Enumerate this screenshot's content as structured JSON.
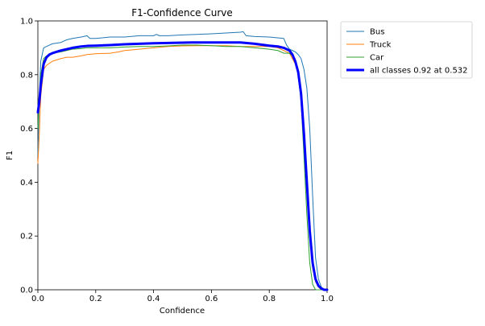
{
  "chart_data": {
    "type": "line",
    "title": "F1-Confidence Curve",
    "xlabel": "Confidence",
    "ylabel": "F1",
    "xlim": [
      0.0,
      1.0
    ],
    "ylim": [
      0.0,
      1.0
    ],
    "xticks": [
      "0.0",
      "0.2",
      "0.4",
      "0.6",
      "0.8",
      "1.0"
    ],
    "yticks": [
      "0.0",
      "0.2",
      "0.4",
      "0.6",
      "0.8",
      "1.0"
    ],
    "grid": false,
    "legend_position": "outside-top-right",
    "series": [
      {
        "name": "Bus",
        "color": "#1f77b4",
        "x": [
          0.0,
          0.005,
          0.01,
          0.02,
          0.03,
          0.04,
          0.05,
          0.08,
          0.1,
          0.12,
          0.15,
          0.17,
          0.18,
          0.2,
          0.25,
          0.3,
          0.35,
          0.4,
          0.41,
          0.42,
          0.45,
          0.5,
          0.55,
          0.6,
          0.65,
          0.7,
          0.71,
          0.72,
          0.75,
          0.8,
          0.85,
          0.86,
          0.87,
          0.88,
          0.89,
          0.9,
          0.91,
          0.92,
          0.93,
          0.94,
          0.95,
          0.96,
          0.97,
          0.98,
          0.99,
          1.0
        ],
        "values": [
          0.5,
          0.72,
          0.85,
          0.9,
          0.905,
          0.91,
          0.915,
          0.92,
          0.93,
          0.935,
          0.94,
          0.945,
          0.935,
          0.935,
          0.94,
          0.94,
          0.945,
          0.945,
          0.95,
          0.945,
          0.945,
          0.948,
          0.95,
          0.952,
          0.955,
          0.958,
          0.96,
          0.945,
          0.942,
          0.94,
          0.935,
          0.91,
          0.895,
          0.89,
          0.885,
          0.875,
          0.86,
          0.82,
          0.75,
          0.6,
          0.35,
          0.12,
          0.04,
          0.01,
          0.0,
          0.0
        ]
      },
      {
        "name": "Truck",
        "color": "#ff7f0e",
        "x": [
          0.0,
          0.005,
          0.01,
          0.02,
          0.03,
          0.05,
          0.08,
          0.1,
          0.12,
          0.15,
          0.17,
          0.2,
          0.25,
          0.28,
          0.3,
          0.35,
          0.4,
          0.45,
          0.5,
          0.55,
          0.6,
          0.65,
          0.7,
          0.75,
          0.8,
          0.83,
          0.85,
          0.87,
          0.88,
          0.89,
          0.9,
          0.91,
          0.92,
          0.93,
          0.94,
          0.95,
          0.96,
          0.97,
          0.98,
          1.0
        ],
        "values": [
          0.47,
          0.58,
          0.72,
          0.82,
          0.835,
          0.85,
          0.86,
          0.865,
          0.865,
          0.87,
          0.875,
          0.878,
          0.88,
          0.885,
          0.89,
          0.895,
          0.9,
          0.905,
          0.907,
          0.908,
          0.908,
          0.908,
          0.905,
          0.905,
          0.905,
          0.9,
          0.89,
          0.88,
          0.86,
          0.84,
          0.8,
          0.72,
          0.58,
          0.38,
          0.2,
          0.08,
          0.03,
          0.01,
          0.0,
          0.0
        ]
      },
      {
        "name": "Car",
        "color": "#2ca02c",
        "x": [
          0.0,
          0.005,
          0.01,
          0.02,
          0.03,
          0.04,
          0.05,
          0.08,
          0.1,
          0.12,
          0.15,
          0.17,
          0.2,
          0.25,
          0.3,
          0.35,
          0.4,
          0.45,
          0.5,
          0.55,
          0.6,
          0.65,
          0.7,
          0.75,
          0.8,
          0.83,
          0.85,
          0.87,
          0.88,
          0.89,
          0.9,
          0.91,
          0.92,
          0.93,
          0.94,
          0.95,
          0.96,
          0.98,
          1.0
        ],
        "values": [
          0.6,
          0.7,
          0.8,
          0.86,
          0.87,
          0.875,
          0.88,
          0.885,
          0.89,
          0.895,
          0.897,
          0.9,
          0.9,
          0.9,
          0.903,
          0.905,
          0.905,
          0.907,
          0.91,
          0.91,
          0.908,
          0.905,
          0.905,
          0.9,
          0.895,
          0.89,
          0.88,
          0.88,
          0.87,
          0.85,
          0.8,
          0.7,
          0.5,
          0.28,
          0.1,
          0.02,
          0.0,
          0.0,
          0.0
        ]
      },
      {
        "name": "all classes 0.92 at 0.532",
        "color": "#0000ff",
        "x": [
          0.0,
          0.005,
          0.01,
          0.02,
          0.03,
          0.04,
          0.05,
          0.08,
          0.1,
          0.12,
          0.15,
          0.17,
          0.2,
          0.25,
          0.3,
          0.35,
          0.4,
          0.45,
          0.5,
          0.532,
          0.55,
          0.6,
          0.65,
          0.7,
          0.75,
          0.8,
          0.83,
          0.85,
          0.87,
          0.88,
          0.89,
          0.9,
          0.91,
          0.92,
          0.93,
          0.94,
          0.95,
          0.96,
          0.97,
          0.98,
          0.99,
          1.0
        ],
        "values": [
          0.66,
          0.7,
          0.76,
          0.84,
          0.865,
          0.875,
          0.88,
          0.89,
          0.895,
          0.9,
          0.905,
          0.907,
          0.908,
          0.91,
          0.913,
          0.915,
          0.917,
          0.918,
          0.919,
          0.92,
          0.92,
          0.92,
          0.92,
          0.92,
          0.915,
          0.908,
          0.905,
          0.9,
          0.89,
          0.875,
          0.85,
          0.81,
          0.73,
          0.58,
          0.4,
          0.22,
          0.1,
          0.04,
          0.015,
          0.005,
          0.0,
          0.0
        ]
      }
    ]
  }
}
